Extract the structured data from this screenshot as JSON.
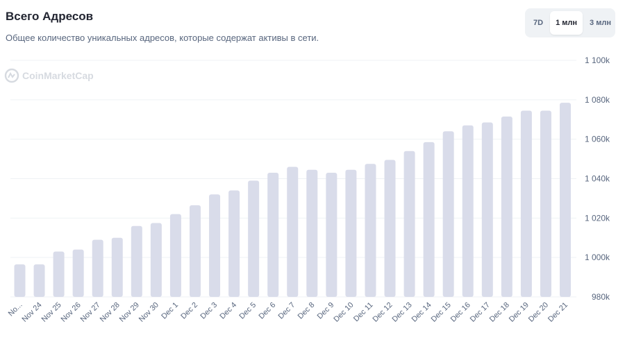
{
  "header": {
    "title": "Всего Адресов",
    "subtitle": "Общее количество уникальных адресов, которые содержат активы в сети."
  },
  "range_buttons": [
    {
      "label": "7D",
      "active": false
    },
    {
      "label": "1 млн",
      "active": true
    },
    {
      "label": "3 млн",
      "active": false
    }
  ],
  "watermark": {
    "icon": "coinmarketcap-logo-icon",
    "text": "CoinMarketCap"
  },
  "colors": {
    "bar": "#d9dcea",
    "grid": "#eff2f5",
    "text": "#58667e"
  },
  "chart_data": {
    "type": "bar",
    "title": "Всего Адресов",
    "xlabel": "",
    "ylabel": "",
    "ylim": [
      980000,
      1100000
    ],
    "yticks": [
      980000,
      1000000,
      1020000,
      1040000,
      1060000,
      1080000,
      1100000
    ],
    "ytick_labels": [
      "980k",
      "1 000k",
      "1 020k",
      "1 040k",
      "1 060k",
      "1 080k",
      "1 100k"
    ],
    "grid": true,
    "categories": [
      "No...",
      "Nov 24",
      "Nov 25",
      "Nov 26",
      "Nov 27",
      "Nov 28",
      "Nov 29",
      "Nov 30",
      "Dec 1",
      "Dec 2",
      "Dec 3",
      "Dec 4",
      "Dec 5",
      "Dec 6",
      "Dec 7",
      "Dec 8",
      "Dec 9",
      "Dec 10",
      "Dec 11",
      "Dec 12",
      "Dec 13",
      "Dec 14",
      "Dec 15",
      "Dec 16",
      "Dec 17",
      "Dec 18",
      "Dec 19",
      "Dec 20",
      "Dec 21"
    ],
    "values": [
      996500,
      996500,
      1003000,
      1004000,
      1009000,
      1010000,
      1016000,
      1017500,
      1022000,
      1026500,
      1032000,
      1034000,
      1039000,
      1043000,
      1046000,
      1044500,
      1043000,
      1044500,
      1047500,
      1049500,
      1054000,
      1058500,
      1064000,
      1067000,
      1068500,
      1071500,
      1074500,
      1074500,
      1078500
    ]
  }
}
